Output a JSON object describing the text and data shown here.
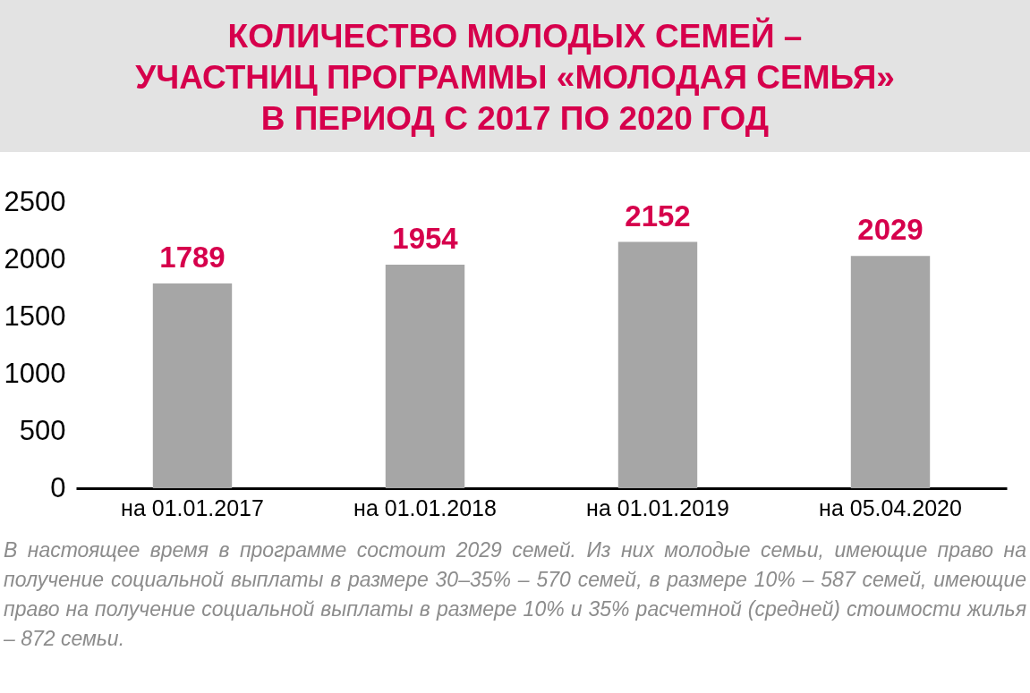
{
  "chart_data": {
    "type": "bar",
    "title": "КОЛИЧЕСТВО МОЛОДЫХ СЕМЕЙ –\nУЧАСТНИЦ ПРОГРАММЫ «МОЛОДАЯ СЕМЬЯ»\nВ ПЕРИОД С 2017 ПО 2020 ГОД",
    "categories": [
      "на 01.01.2017",
      "на 01.01.2018",
      "на 01.01.2019",
      "на 05.04.2020"
    ],
    "values": [
      1789,
      1954,
      2152,
      2029
    ],
    "color": "#a6a6a6",
    "data_labels": true,
    "ylim": [
      0,
      2500
    ],
    "yticks": [
      0,
      500,
      1000,
      1500,
      2000,
      2500
    ],
    "grid": false,
    "annotations": [
      "В настоящее время в программе состоит 2029 семей. Из них молодые семьи, имеющие право на получение социальной выплаты в размере 30–35% – 570 семей, в размере 10% – 587 семей, имеющие право на получение социальной выплаты в размере 10% и 35% расчетной (средней) стоимости жилья – 872 семьи."
    ]
  }
}
